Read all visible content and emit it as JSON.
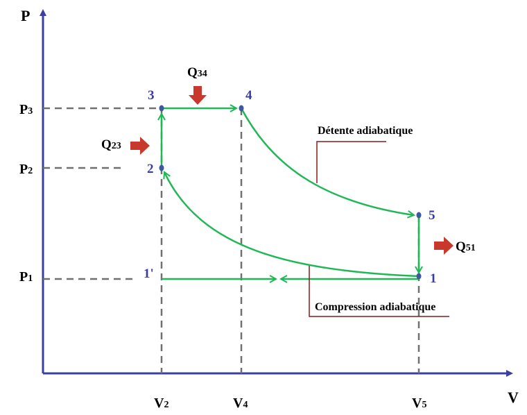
{
  "axes": {
    "x_label": "V",
    "y_label": "P"
  },
  "pressure_labels": {
    "p3": "P3",
    "p2": "P2",
    "p1": "P1"
  },
  "volume_labels": {
    "v2": "V2",
    "v4": "V4",
    "v5": "V5"
  },
  "points": {
    "p1": "1",
    "p1prime": "1'",
    "p2": "2",
    "p3": "3",
    "p4": "4",
    "p5": "5"
  },
  "heat_labels": {
    "q23": "Q23",
    "q34": "Q34",
    "q51": "Q51"
  },
  "annotations": {
    "detente": "Détente adiabatique",
    "compression": "Compression adiabatique"
  },
  "colors": {
    "axis": "#3b3fa0",
    "cycle": "#20b856",
    "point": "#3d5a9e",
    "point_label": "#3a3aa8",
    "arrow": "#c8382d",
    "leader": "#8b1a1a",
    "dashed": "#707070"
  }
}
